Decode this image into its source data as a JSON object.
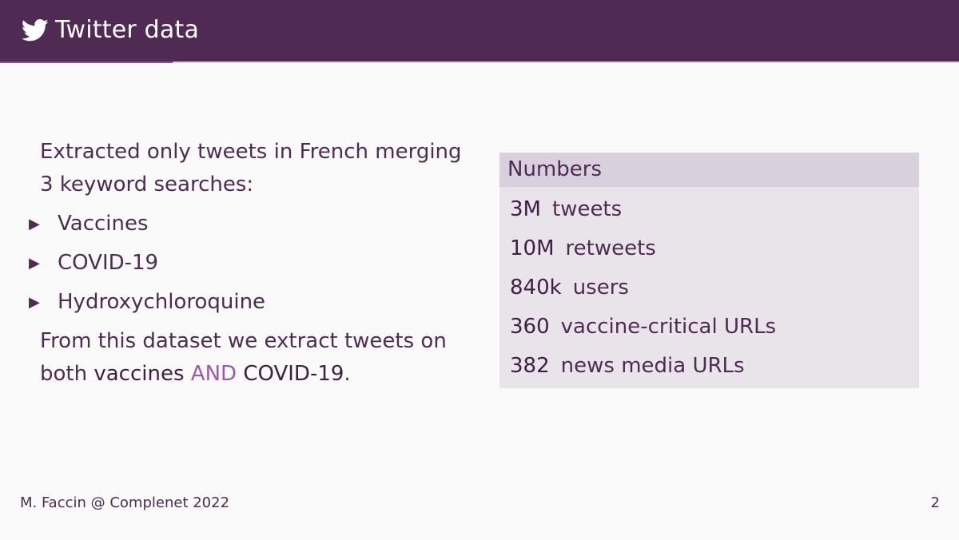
{
  "header": {
    "title": "Twitter data",
    "progress_fraction": 0.18
  },
  "left": {
    "intro": "Extracted only tweets in French merging 3 keyword searches:",
    "bullets": [
      "Vaccines",
      "COVID-19",
      "Hydroxychloroquine"
    ],
    "outro_prefix": "From this dataset we extract tweets on both ",
    "outro_term1": "vaccines",
    "outro_and": "AND",
    "outro_term2": "COVID-19",
    "outro_suffix": "."
  },
  "box": {
    "title": "Numbers",
    "stats": [
      {
        "num": "3M",
        "label": "tweets"
      },
      {
        "num": "10M",
        "label": "retweets"
      },
      {
        "num": "840k",
        "label": "users"
      },
      {
        "num": "360",
        "label": "vaccine-critical URLs"
      },
      {
        "num": "382",
        "label": "news media URLs"
      }
    ]
  },
  "footer": {
    "author": "M. Faccin @ Complenet 2022",
    "page": "2"
  },
  "colors": {
    "header_bg": "#4f2b54",
    "text": "#4f2b54",
    "accent": "#9b59b6",
    "box_bg": "#e8e4ea",
    "box_title_bg": "#d9d0dd"
  }
}
